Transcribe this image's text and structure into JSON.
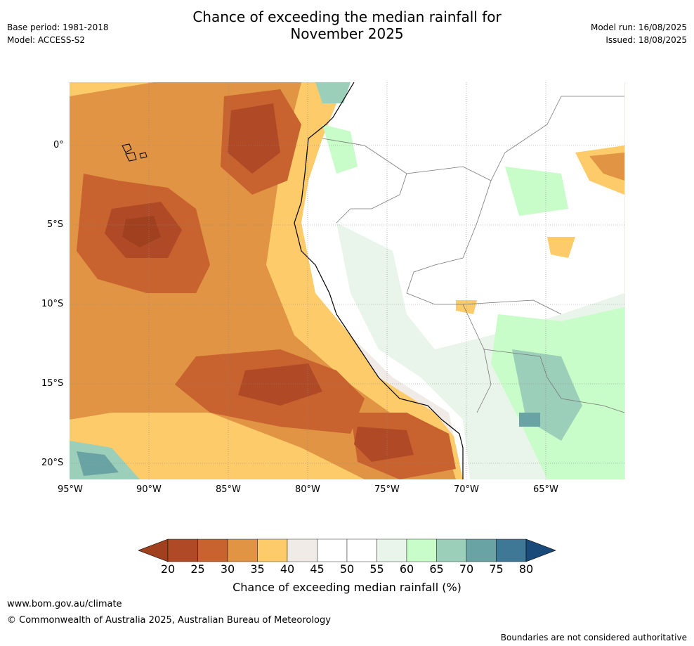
{
  "title_line1": "Chance of exceeding the median rainfall for",
  "title_line2": "November 2025",
  "base_period": "Base period: 1981-2018",
  "model": "Model: ACCESS-S2",
  "model_run": "Model run: 16/08/2025",
  "issued": "Issued: 18/08/2025",
  "lat_labels": [
    "0°",
    "5°S",
    "10°S",
    "15°S",
    "20°S"
  ],
  "lon_labels": [
    "95°W",
    "90°W",
    "85°W",
    "80°W",
    "75°W",
    "70°W",
    "65°W"
  ],
  "colorbar": {
    "ticks": [
      "20",
      "25",
      "30",
      "35",
      "40",
      "45",
      "50",
      "55",
      "60",
      "65",
      "70",
      "75",
      "80"
    ],
    "colors": [
      "#a0401f",
      "#b04a26",
      "#c8622f",
      "#e09444",
      "#fecb6b",
      "#f0ebe6",
      "#ffffff",
      "#ffffff",
      "#e9f5ea",
      "#c8fcc8",
      "#9ccfb9",
      "#6aa3a3",
      "#3e7896",
      "#1a4a7a"
    ],
    "label": "Chance of exceeding median rainfall (%)"
  },
  "footer": {
    "url": "www.bom.gov.au/climate",
    "copyright": "© Commonwealth of Australia 2025, Australian Bureau of Meteorology",
    "disclaimer": "Boundaries are not considered authoritative"
  }
}
